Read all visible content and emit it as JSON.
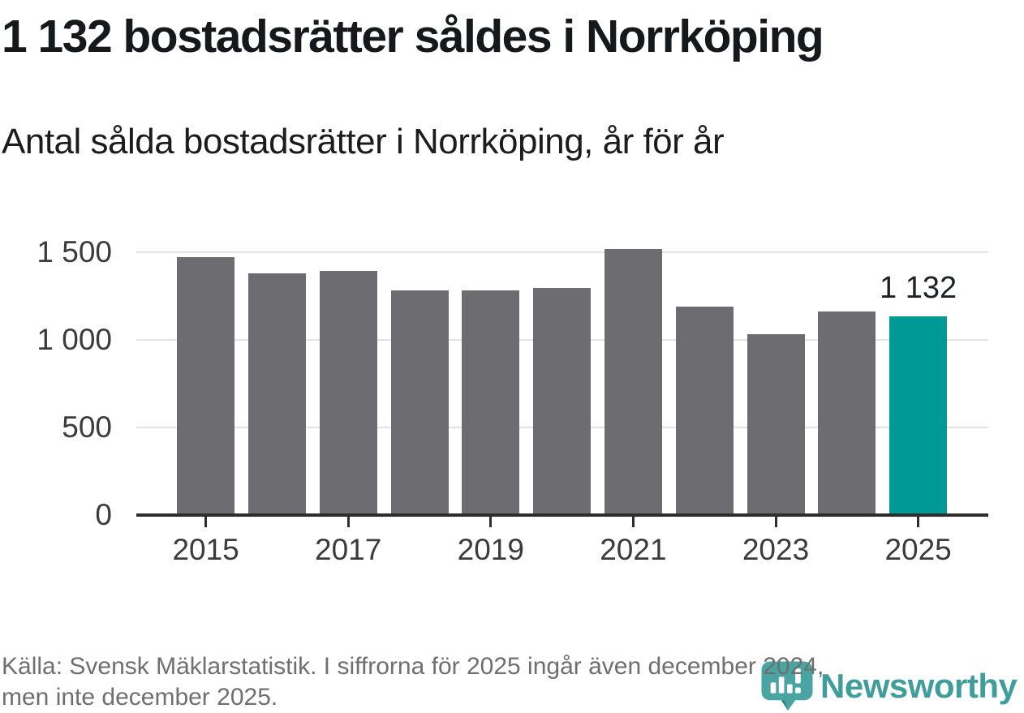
{
  "header": {
    "title": "1 132 bostadsrätter såldes i Norrköping",
    "subtitle": "Antal sålda bostadsrätter i Norrköping, år för år"
  },
  "chart_data": {
    "type": "bar",
    "title": "1 132 bostadsrätter såldes i Norrköping",
    "subtitle": "Antal sålda bostadsrätter i Norrköping, år för år",
    "categories": [
      "2015",
      "2016",
      "2017",
      "2018",
      "2019",
      "2020",
      "2021",
      "2022",
      "2023",
      "2024",
      "2025"
    ],
    "values": [
      1470,
      1380,
      1395,
      1280,
      1280,
      1295,
      1520,
      1190,
      1030,
      1160,
      1132
    ],
    "highlight_index": 10,
    "highlight_label": "1 132",
    "bar_color": "#6d6d71",
    "highlight_color": "#009a96",
    "y_ticks": [
      0,
      500,
      1000,
      1500
    ],
    "y_tick_labels": [
      "0",
      "500",
      "1 000",
      "1 500"
    ],
    "ylim": [
      0,
      1560
    ],
    "x_tick_indices": [
      0,
      2,
      4,
      6,
      8,
      10
    ],
    "x_tick_labels": [
      "2015",
      "2017",
      "2019",
      "2021",
      "2023",
      "2025"
    ],
    "grid": true,
    "legend": false,
    "xlabel": "",
    "ylabel": ""
  },
  "footer": {
    "source_line1": "Källa: Svensk Mäklarstatistik. I siffrorna för 2025 ingår även december 2024,",
    "source_line2": "men inte december 2025.",
    "brand": "Newsworthy",
    "brand_color": "#3f9e9b"
  },
  "colors": {
    "gridline": "#e4e4e4",
    "axis_line": "#2d2d2d",
    "tick_label": "#3b3b3b",
    "title_text": "#16191c",
    "source_text": "#6f6f6f",
    "logo_bubble": "#4aa5a2",
    "logo_bubble_shade": "#2e827f"
  }
}
